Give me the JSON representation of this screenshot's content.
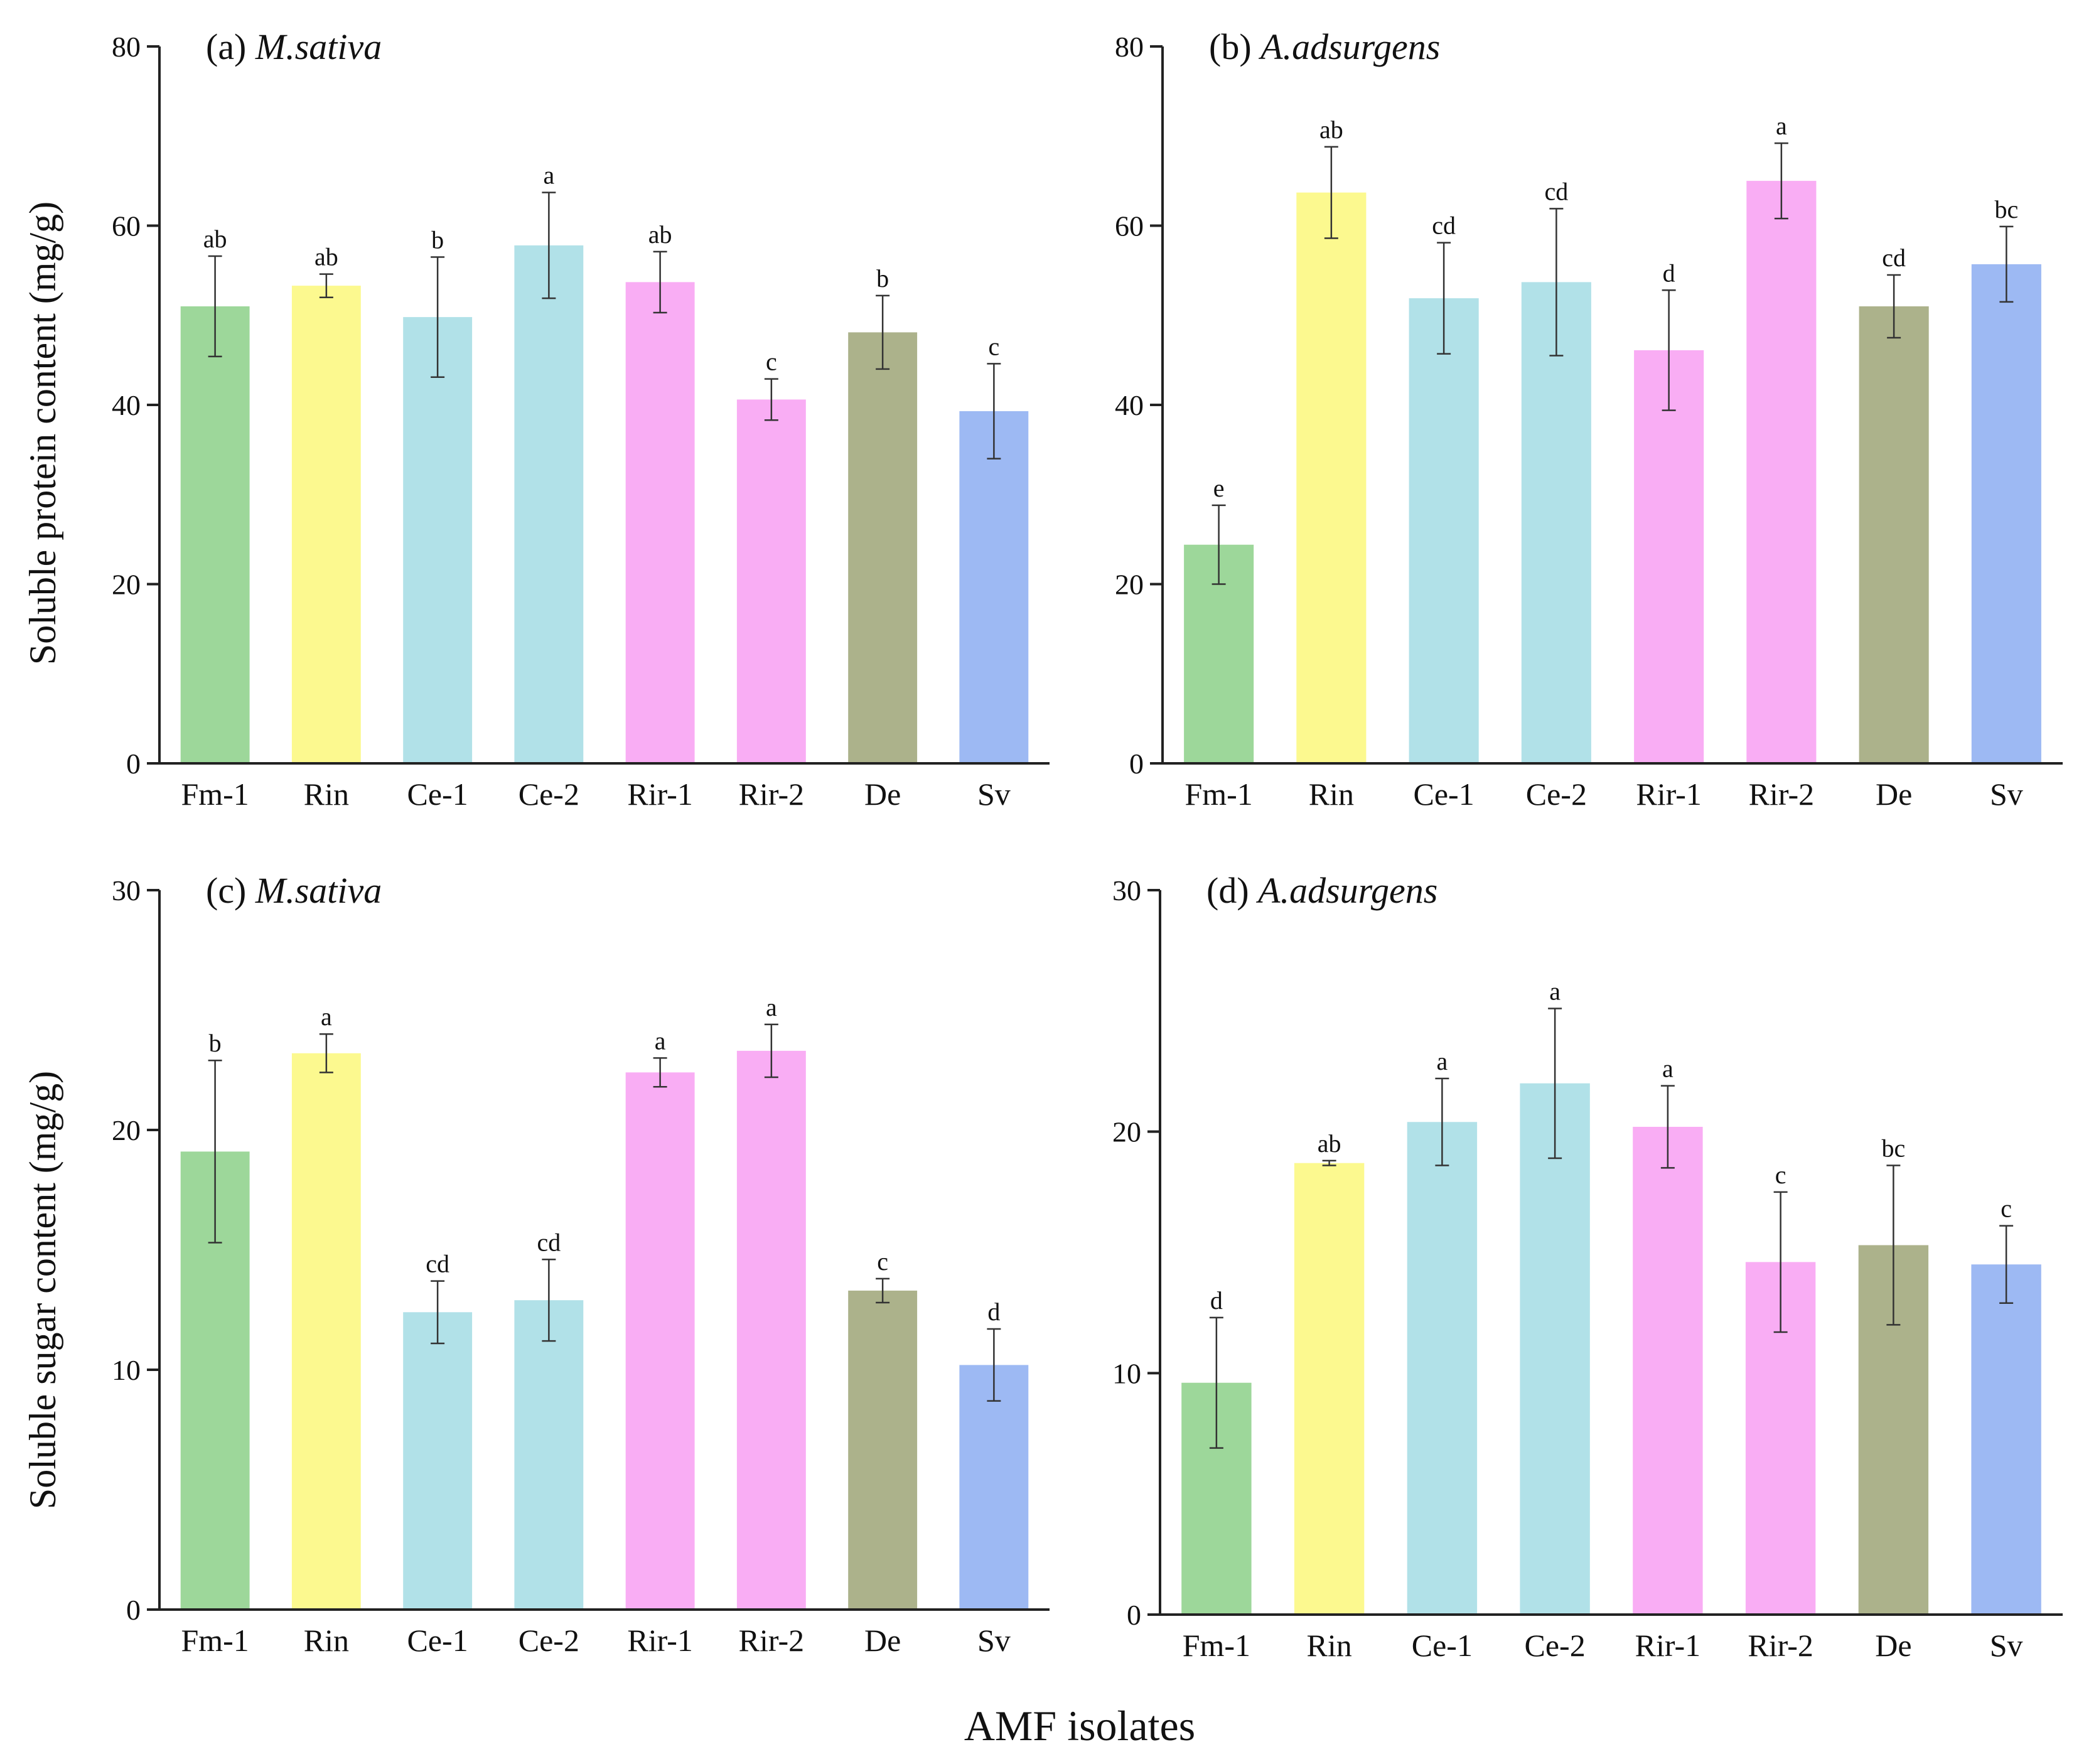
{
  "figure": {
    "xlabel": "AMF isolates",
    "ylabel_top": "Soluble protein content (mg/g)",
    "ylabel_bottom": "Soluble sugar content (mg/g)"
  },
  "colors": [
    "#9dd79a",
    "#fcf98f",
    "#b1e1e8",
    "#b1e1e8",
    "#f9adf4",
    "#f9adf4",
    "#acb28b",
    "#9db9f3"
  ],
  "chart_data": [
    {
      "type": "bar",
      "panel": "(a)",
      "species": "M.sativa",
      "categories": [
        "Fm-1",
        "Rin",
        "Ce-1",
        "Ce-2",
        "Rir-1",
        "Rir-2",
        "De",
        "Sv"
      ],
      "values": [
        51.0,
        53.3,
        49.8,
        57.8,
        53.7,
        40.6,
        48.1,
        39.3
      ],
      "errors": [
        5.6,
        1.3,
        6.7,
        5.9,
        3.4,
        2.3,
        4.1,
        5.3
      ],
      "letters": [
        "ab",
        "ab",
        "b",
        "a",
        "ab",
        "c",
        "b",
        "c"
      ],
      "ylabel": "Soluble protein content (mg/g)",
      "ylim": [
        0,
        80
      ],
      "yticks": [
        0,
        20,
        40,
        60,
        80
      ]
    },
    {
      "type": "bar",
      "panel": "(b)",
      "species": "A.adsurgens",
      "categories": [
        "Fm-1",
        "Rin",
        "Ce-1",
        "Ce-2",
        "Rir-1",
        "Rir-2",
        "De",
        "Sv"
      ],
      "values": [
        24.4,
        63.7,
        51.9,
        53.7,
        46.1,
        65.0,
        51.0,
        55.7
      ],
      "errors": [
        4.4,
        5.1,
        6.2,
        8.2,
        6.7,
        4.2,
        3.5,
        4.2
      ],
      "letters": [
        "e",
        "ab",
        "cd",
        "cd",
        "d",
        "a",
        "cd",
        "bc"
      ],
      "ylabel": "",
      "ylim": [
        0,
        80
      ],
      "yticks": [
        0,
        20,
        40,
        60,
        80
      ]
    },
    {
      "type": "bar",
      "panel": "(c)",
      "species": "M.sativa",
      "categories": [
        "Fm-1",
        "Rin",
        "Ce-1",
        "Ce-2",
        "Rir-1",
        "Rir-2",
        "De",
        "Sv"
      ],
      "values": [
        19.1,
        23.2,
        12.4,
        12.9,
        22.4,
        23.3,
        13.3,
        10.2
      ],
      "errors": [
        3.8,
        0.8,
        1.3,
        1.7,
        0.6,
        1.1,
        0.5,
        1.5
      ],
      "letters": [
        "b",
        "a",
        "cd",
        "cd",
        "a",
        "a",
        "c",
        "d"
      ],
      "ylabel": "Soluble sugar content (mg/g)",
      "ylim": [
        0,
        30
      ],
      "yticks": [
        0,
        10,
        20,
        30
      ]
    },
    {
      "type": "bar",
      "panel": "(d)",
      "species": "A.adsurgens",
      "categories": [
        "Fm-1",
        "Rin",
        "Ce-1",
        "Ce-2",
        "Rir-1",
        "Rir-2",
        "De",
        "Sv"
      ],
      "values": [
        9.6,
        18.7,
        20.4,
        22.0,
        20.2,
        14.6,
        15.3,
        14.5
      ],
      "errors": [
        2.7,
        0.1,
        1.8,
        3.1,
        1.7,
        2.9,
        3.3,
        1.6
      ],
      "letters": [
        "d",
        "ab",
        "a",
        "a",
        "a",
        "c",
        "bc",
        "c"
      ],
      "ylabel": "",
      "ylim": [
        0,
        30
      ],
      "yticks": [
        0,
        10,
        20,
        30
      ]
    }
  ]
}
